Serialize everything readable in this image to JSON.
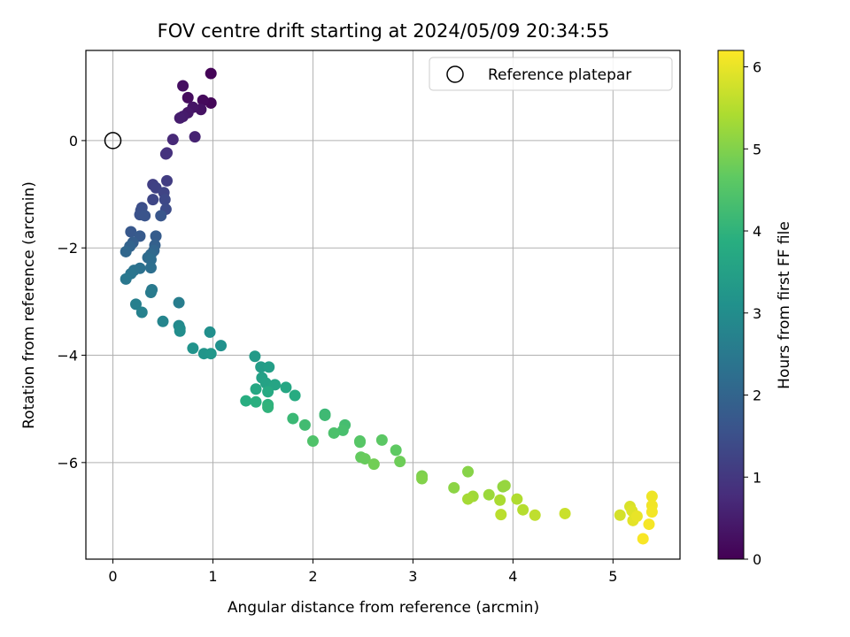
{
  "chart_data": {
    "type": "scatter",
    "title": "FOV centre drift starting at 2024/05/09 20:34:55",
    "xlabel": "Angular distance from reference (arcmin)",
    "ylabel": "Rotation from reference (arcmin)",
    "xlim": [
      -0.27,
      5.67
    ],
    "ylim": [
      -7.8,
      1.68
    ],
    "xticks": [
      0,
      1,
      2,
      3,
      4,
      5
    ],
    "yticks": [
      -6,
      -4,
      -2,
      0
    ],
    "grid": true,
    "legend": {
      "location": "upper right",
      "entries": [
        "Reference platepar"
      ]
    },
    "colorbar": {
      "label": "Hours from first FF file",
      "range": [
        0,
        6.2
      ],
      "ticks": [
        0,
        1,
        2,
        3,
        4,
        5,
        6
      ],
      "colormap": "viridis"
    },
    "reference_point": {
      "x": 0,
      "y": 0,
      "label": "Reference platepar"
    },
    "series": [
      {
        "points": [
          {
            "x": 0.98,
            "y": 1.25,
            "c": 0.05
          },
          {
            "x": 0.98,
            "y": 0.7,
            "c": 0.1
          },
          {
            "x": 0.9,
            "y": 0.75,
            "c": 0.15
          },
          {
            "x": 0.75,
            "y": 0.8,
            "c": 0.2
          },
          {
            "x": 0.7,
            "y": 1.02,
            "c": 0.25
          },
          {
            "x": 0.88,
            "y": 0.58,
            "c": 0.3
          },
          {
            "x": 0.8,
            "y": 0.62,
            "c": 0.35
          },
          {
            "x": 0.75,
            "y": 0.52,
            "c": 0.4
          },
          {
            "x": 0.7,
            "y": 0.45,
            "c": 0.45
          },
          {
            "x": 0.67,
            "y": 0.42,
            "c": 0.5
          },
          {
            "x": 0.82,
            "y": 0.07,
            "c": 0.6
          },
          {
            "x": 0.6,
            "y": 0.02,
            "c": 0.7
          },
          {
            "x": 0.54,
            "y": -0.23,
            "c": 0.8
          },
          {
            "x": 0.53,
            "y": -0.25,
            "c": 0.9
          },
          {
            "x": 0.54,
            "y": -0.75,
            "c": 1.1
          },
          {
            "x": 0.4,
            "y": -0.82,
            "c": 1.15
          },
          {
            "x": 0.43,
            "y": -0.88,
            "c": 1.2
          },
          {
            "x": 0.51,
            "y": -0.97,
            "c": 1.25
          },
          {
            "x": 0.4,
            "y": -1.1,
            "c": 1.3
          },
          {
            "x": 0.52,
            "y": -1.1,
            "c": 1.35
          },
          {
            "x": 0.53,
            "y": -1.28,
            "c": 1.4
          },
          {
            "x": 0.29,
            "y": -1.25,
            "c": 1.45
          },
          {
            "x": 0.28,
            "y": -1.3,
            "c": 1.5
          },
          {
            "x": 0.27,
            "y": -1.38,
            "c": 1.55
          },
          {
            "x": 0.32,
            "y": -1.4,
            "c": 1.6
          },
          {
            "x": 0.48,
            "y": -1.4,
            "c": 1.65
          },
          {
            "x": 0.18,
            "y": -1.7,
            "c": 1.7
          },
          {
            "x": 0.27,
            "y": -1.78,
            "c": 1.75
          },
          {
            "x": 0.43,
            "y": -1.78,
            "c": 1.8
          },
          {
            "x": 0.2,
            "y": -1.9,
            "c": 1.85
          },
          {
            "x": 0.42,
            "y": -1.95,
            "c": 1.9
          },
          {
            "x": 0.17,
            "y": -1.97,
            "c": 1.95
          },
          {
            "x": 0.41,
            "y": -2.05,
            "c": 2.0
          },
          {
            "x": 0.13,
            "y": -2.07,
            "c": 2.05
          },
          {
            "x": 0.38,
            "y": -2.12,
            "c": 2.1
          },
          {
            "x": 0.35,
            "y": -2.18,
            "c": 2.15
          },
          {
            "x": 0.38,
            "y": -2.22,
            "c": 2.2
          },
          {
            "x": 0.38,
            "y": -2.37,
            "c": 2.25
          },
          {
            "x": 0.27,
            "y": -2.38,
            "c": 2.3
          },
          {
            "x": 0.21,
            "y": -2.42,
            "c": 2.35
          },
          {
            "x": 0.18,
            "y": -2.48,
            "c": 2.4
          },
          {
            "x": 0.13,
            "y": -2.58,
            "c": 2.45
          },
          {
            "x": 0.39,
            "y": -2.78,
            "c": 2.5
          },
          {
            "x": 0.38,
            "y": -2.83,
            "c": 2.55
          },
          {
            "x": 0.66,
            "y": -3.02,
            "c": 2.6
          },
          {
            "x": 0.23,
            "y": -3.05,
            "c": 2.65
          },
          {
            "x": 0.29,
            "y": -3.2,
            "c": 2.7
          },
          {
            "x": 0.5,
            "y": -3.37,
            "c": 2.8
          },
          {
            "x": 0.66,
            "y": -3.45,
            "c": 2.9
          },
          {
            "x": 0.67,
            "y": -3.5,
            "c": 2.95
          },
          {
            "x": 0.67,
            "y": -3.55,
            "c": 3.0
          },
          {
            "x": 0.97,
            "y": -3.57,
            "c": 3.05
          },
          {
            "x": 1.08,
            "y": -3.82,
            "c": 3.1
          },
          {
            "x": 0.8,
            "y": -3.87,
            "c": 3.15
          },
          {
            "x": 0.91,
            "y": -3.97,
            "c": 3.2
          },
          {
            "x": 0.98,
            "y": -3.97,
            "c": 3.25
          },
          {
            "x": 1.42,
            "y": -4.02,
            "c": 3.35
          },
          {
            "x": 1.48,
            "y": -4.22,
            "c": 3.4
          },
          {
            "x": 1.56,
            "y": -4.22,
            "c": 3.45
          },
          {
            "x": 1.49,
            "y": -4.42,
            "c": 3.5
          },
          {
            "x": 1.53,
            "y": -4.52,
            "c": 3.55
          },
          {
            "x": 1.62,
            "y": -4.55,
            "c": 3.6
          },
          {
            "x": 1.73,
            "y": -4.6,
            "c": 3.65
          },
          {
            "x": 1.43,
            "y": -4.63,
            "c": 3.7
          },
          {
            "x": 1.55,
            "y": -4.68,
            "c": 3.75
          },
          {
            "x": 1.82,
            "y": -4.75,
            "c": 3.8
          },
          {
            "x": 1.33,
            "y": -4.85,
            "c": 3.85
          },
          {
            "x": 1.43,
            "y": -4.87,
            "c": 3.9
          },
          {
            "x": 1.55,
            "y": -4.92,
            "c": 3.95
          },
          {
            "x": 1.55,
            "y": -4.97,
            "c": 4.0
          },
          {
            "x": 2.12,
            "y": -5.1,
            "c": 4.1
          },
          {
            "x": 1.8,
            "y": -5.18,
            "c": 4.15
          },
          {
            "x": 2.12,
            "y": -5.12,
            "c": 4.2
          },
          {
            "x": 1.92,
            "y": -5.3,
            "c": 4.25
          },
          {
            "x": 2.32,
            "y": -5.3,
            "c": 4.3
          },
          {
            "x": 2.3,
            "y": -5.4,
            "c": 4.35
          },
          {
            "x": 2.21,
            "y": -5.45,
            "c": 4.4
          },
          {
            "x": 2.0,
            "y": -5.6,
            "c": 4.45
          },
          {
            "x": 2.47,
            "y": -5.6,
            "c": 4.5
          },
          {
            "x": 2.47,
            "y": -5.62,
            "c": 4.55
          },
          {
            "x": 2.69,
            "y": -5.58,
            "c": 4.6
          },
          {
            "x": 2.83,
            "y": -5.77,
            "c": 4.65
          },
          {
            "x": 2.48,
            "y": -5.9,
            "c": 4.7
          },
          {
            "x": 2.52,
            "y": -5.93,
            "c": 4.75
          },
          {
            "x": 2.87,
            "y": -5.98,
            "c": 4.8
          },
          {
            "x": 2.61,
            "y": -6.03,
            "c": 4.85
          },
          {
            "x": 3.09,
            "y": -6.25,
            "c": 4.95
          },
          {
            "x": 3.09,
            "y": -6.3,
            "c": 5.0
          },
          {
            "x": 3.55,
            "y": -6.17,
            "c": 5.05
          },
          {
            "x": 3.41,
            "y": -6.47,
            "c": 5.1
          },
          {
            "x": 3.9,
            "y": -6.45,
            "c": 5.15
          },
          {
            "x": 3.92,
            "y": -6.43,
            "c": 5.2
          },
          {
            "x": 3.76,
            "y": -6.6,
            "c": 5.25
          },
          {
            "x": 3.6,
            "y": -6.63,
            "c": 5.3
          },
          {
            "x": 3.55,
            "y": -6.68,
            "c": 5.35
          },
          {
            "x": 3.87,
            "y": -6.7,
            "c": 5.4
          },
          {
            "x": 4.04,
            "y": -6.68,
            "c": 5.45
          },
          {
            "x": 4.1,
            "y": -6.88,
            "c": 5.5
          },
          {
            "x": 3.88,
            "y": -6.97,
            "c": 5.55
          },
          {
            "x": 4.22,
            "y": -6.98,
            "c": 5.6
          },
          {
            "x": 4.52,
            "y": -6.95,
            "c": 5.7
          },
          {
            "x": 5.07,
            "y": -6.98,
            "c": 5.8
          },
          {
            "x": 5.17,
            "y": -6.82,
            "c": 5.85
          },
          {
            "x": 5.19,
            "y": -6.9,
            "c": 5.9
          },
          {
            "x": 5.2,
            "y": -7.08,
            "c": 5.95
          },
          {
            "x": 5.24,
            "y": -7.0,
            "c": 6.0
          },
          {
            "x": 5.39,
            "y": -6.63,
            "c": 6.05
          },
          {
            "x": 5.39,
            "y": -6.8,
            "c": 6.08
          },
          {
            "x": 5.39,
            "y": -6.92,
            "c": 6.1
          },
          {
            "x": 5.36,
            "y": -7.15,
            "c": 6.12
          },
          {
            "x": 5.3,
            "y": -7.42,
            "c": 6.15
          }
        ]
      }
    ]
  }
}
